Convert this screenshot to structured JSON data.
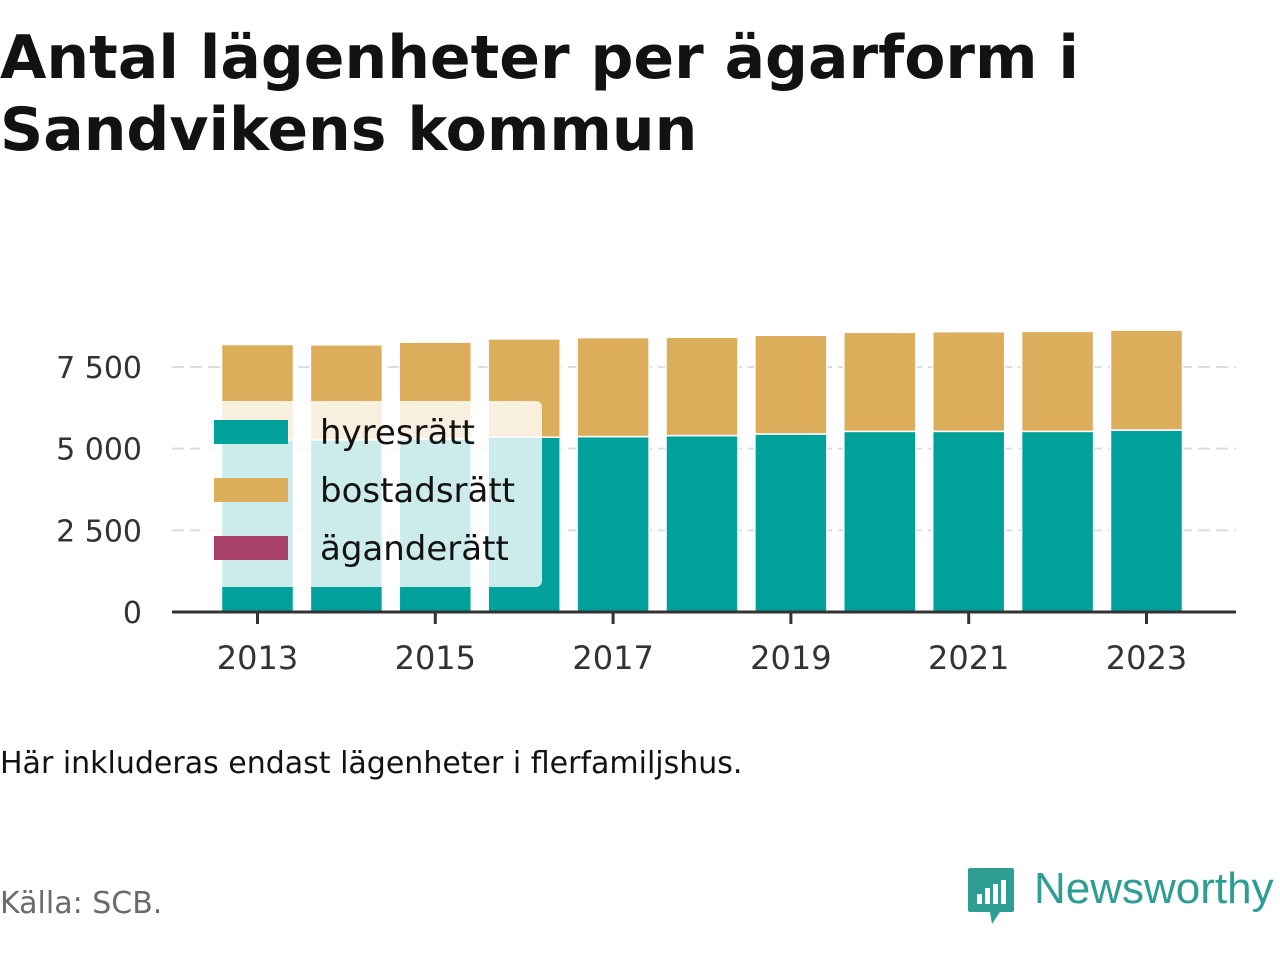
{
  "title": "Antal lägenheter per ägarform i Sandvikens kommun",
  "note": "Här inkluderas endast lägenheter i flerfamiljshus.",
  "source": "Källa: SCB.",
  "brand": {
    "name": "Newsworthy",
    "icon": "newsworthy-logo-icon",
    "color": "#2e9e95"
  },
  "colors": {
    "text": "#121212",
    "muted": "#6b6b6b",
    "grid": "#dddddd",
    "axis": "#333333"
  },
  "chart_data": {
    "type": "bar",
    "stacked": true,
    "x": [
      2013,
      2014,
      2015,
      2016,
      2017,
      2018,
      2019,
      2020,
      2021,
      2022,
      2023
    ],
    "x_tick_labels": [
      "2013",
      "2015",
      "2017",
      "2019",
      "2021",
      "2023"
    ],
    "y_ticks": [
      0,
      2500,
      5000,
      7500
    ],
    "y_tick_labels": [
      "0",
      "2 500",
      "5 000",
      "7 500"
    ],
    "ylim": [
      0,
      8700
    ],
    "grid": "horizontal",
    "legend_position": "top-left, overlapping bars",
    "series": [
      {
        "name": "hyresrätt",
        "color": "#00a19a",
        "values": [
          5270,
          5270,
          5300,
          5350,
          5370,
          5400,
          5450,
          5530,
          5530,
          5530,
          5570
        ]
      },
      {
        "name": "bostadsrätt",
        "color": "#dcae5c",
        "values": [
          2920,
          2910,
          2960,
          3010,
          3030,
          3010,
          3020,
          3030,
          3050,
          3060,
          3060
        ]
      },
      {
        "name": "äganderätt",
        "color": "#a8416a",
        "values": [
          0,
          0,
          0,
          0,
          0,
          0,
          0,
          0,
          0,
          0,
          0
        ]
      }
    ]
  }
}
